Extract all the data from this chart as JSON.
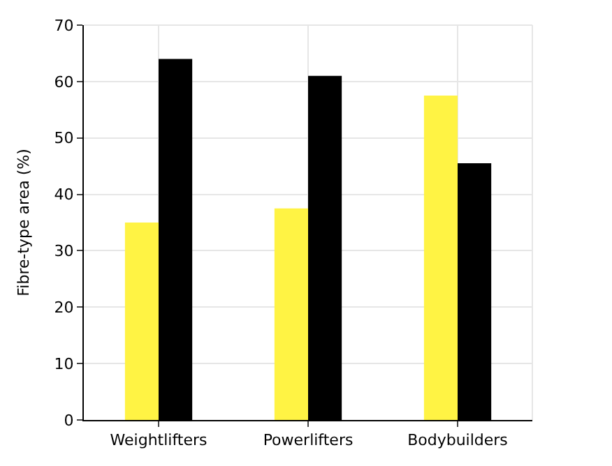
{
  "chart_data": {
    "type": "bar",
    "ylabel": "Fibre-type area (%)",
    "categories": [
      "Weightlifters",
      "Powerlifters",
      "Bodybuilders"
    ],
    "series": [
      {
        "color": "#fff344",
        "values": [
          35.0,
          37.5,
          57.5
        ]
      },
      {
        "color": "#000000",
        "values": [
          64.0,
          61.0,
          45.5
        ]
      }
    ],
    "ylim": [
      0,
      70
    ],
    "yticks": [
      0,
      10,
      20,
      30,
      40,
      50,
      60,
      70
    ],
    "grid": true
  }
}
